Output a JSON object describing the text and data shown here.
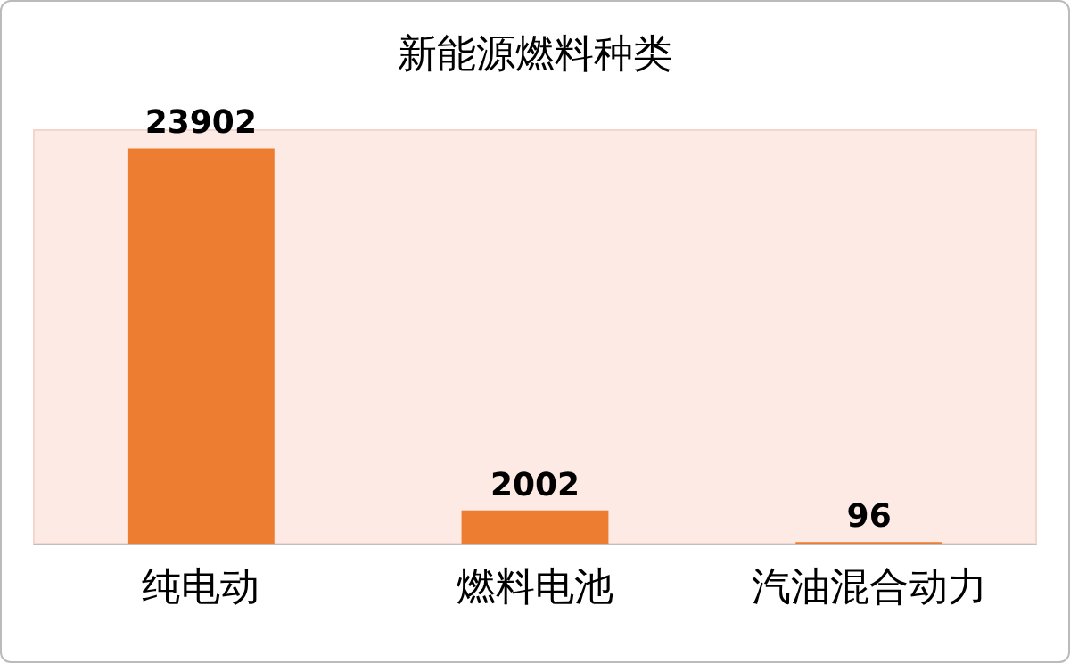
{
  "chart_data": {
    "type": "bar",
    "title": "新能源燃料种类",
    "categories": [
      "纯电动",
      "燃料电池",
      "汽油混合动力"
    ],
    "values": [
      23902,
      2002,
      96
    ],
    "color": "#ed7d31",
    "data_labels": true,
    "grid": false,
    "tick_labels": "x"
  }
}
